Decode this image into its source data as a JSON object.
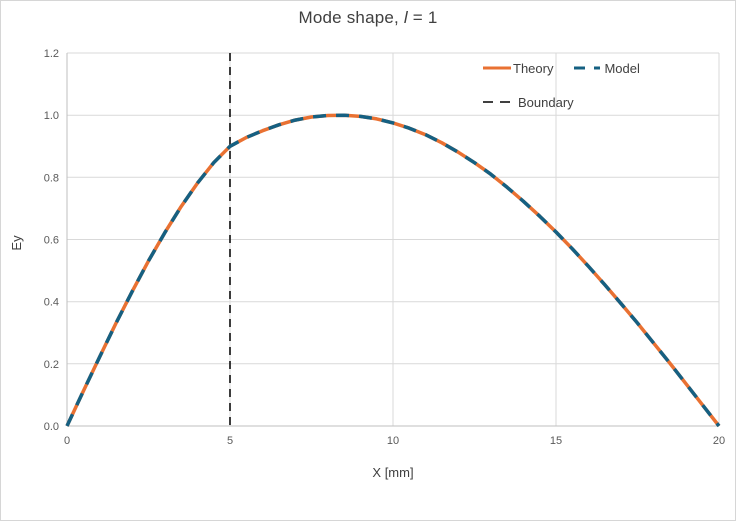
{
  "title": {
    "prefix": "Mode shape, ",
    "var": "l",
    "suffix": " = 1"
  },
  "chart_data": {
    "type": "line",
    "title": "Mode shape, l = 1",
    "xlabel": "X [mm]",
    "ylabel": "Ey",
    "xlim": [
      0,
      20
    ],
    "ylim": [
      0,
      1.2
    ],
    "xticks": [
      0,
      5,
      10,
      15,
      20
    ],
    "yticks": [
      "0.0",
      "0.2",
      "0.4",
      "0.6",
      "0.8",
      "1.0",
      "1.2"
    ],
    "grid": true,
    "legend_position": "top-right",
    "colors": {
      "grid": "#d9d9d9",
      "axis": "#bfbfbf"
    },
    "x": [
      0,
      0.5,
      1,
      1.5,
      2,
      2.5,
      3,
      3.5,
      4,
      4.5,
      5,
      5.5,
      6,
      6.5,
      7,
      7.5,
      8,
      8.5,
      9,
      9.5,
      10,
      10.5,
      11,
      11.5,
      12,
      12.5,
      13,
      13.5,
      14,
      14.5,
      15,
      15.5,
      16,
      16.5,
      17,
      17.5,
      18,
      18.5,
      19,
      19.5,
      20
    ],
    "series": [
      {
        "name": "Theory",
        "color": "#E97132",
        "style": "solid",
        "y": [
          0,
          0.112,
          0.222,
          0.33,
          0.433,
          0.531,
          0.622,
          0.706,
          0.781,
          0.847,
          0.9,
          0.928,
          0.95,
          0.969,
          0.984,
          0.994,
          0.999,
          1.0,
          0.996,
          0.988,
          0.975,
          0.958,
          0.937,
          0.911,
          0.881,
          0.847,
          0.81,
          0.768,
          0.723,
          0.675,
          0.624,
          0.57,
          0.513,
          0.454,
          0.393,
          0.331,
          0.266,
          0.201,
          0.134,
          0.067,
          0
        ]
      },
      {
        "name": "Model",
        "color": "#156082",
        "style": "dashed",
        "y": [
          0,
          0.112,
          0.222,
          0.33,
          0.433,
          0.531,
          0.622,
          0.706,
          0.781,
          0.847,
          0.9,
          0.928,
          0.95,
          0.969,
          0.984,
          0.994,
          0.999,
          1.0,
          0.996,
          0.988,
          0.975,
          0.958,
          0.937,
          0.911,
          0.881,
          0.847,
          0.81,
          0.768,
          0.723,
          0.675,
          0.624,
          0.57,
          0.513,
          0.454,
          0.393,
          0.331,
          0.266,
          0.201,
          0.134,
          0.067,
          0
        ]
      }
    ],
    "boundary": {
      "label": "Boundary",
      "x": 5,
      "color": "#262626",
      "style": "dashed"
    }
  }
}
